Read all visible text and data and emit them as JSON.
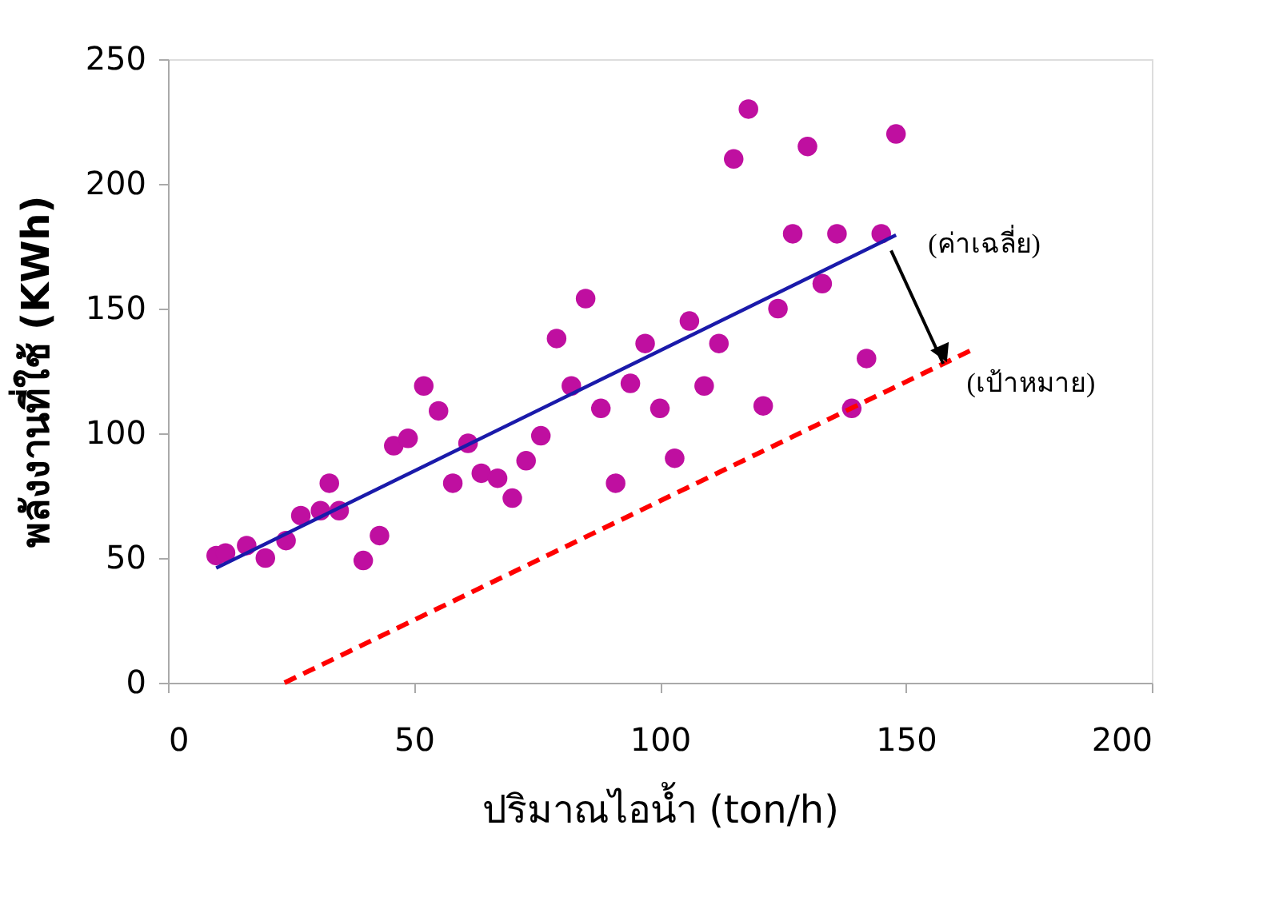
{
  "chart_data": {
    "type": "scatter",
    "xlabel": "ปริมาณไอน้ำ (ton/h)",
    "ylabel": "พลังงานที่ใช้ (KWh)",
    "xlim": [
      0,
      200
    ],
    "xticks": [
      0,
      50,
      100,
      150,
      200
    ],
    "ylim": [
      0,
      250
    ],
    "yticks": [
      0,
      50,
      100,
      150,
      200,
      250
    ],
    "grid": false,
    "series": [
      {
        "color": "#bf0fa0",
        "marker": "circle",
        "x": [
          9.8,
          11.7,
          16,
          19.8,
          24,
          27,
          31,
          32.8,
          34.8,
          39.7,
          43,
          45.9,
          48.8,
          52,
          55,
          57.9,
          61,
          63.7,
          67,
          70,
          72.8,
          75.8,
          79,
          82,
          84.9,
          88,
          91,
          94,
          97,
          100,
          103,
          106,
          109,
          112,
          115,
          118,
          121,
          124,
          127,
          130,
          133,
          136,
          139,
          142,
          145,
          148
        ],
        "values": [
          51,
          52,
          55,
          50,
          57,
          67,
          69,
          80,
          69,
          49,
          59,
          95,
          98,
          119,
          109,
          80,
          96,
          84,
          82,
          74,
          89,
          99,
          138,
          119,
          154,
          110,
          80,
          120,
          136,
          110,
          90,
          145,
          119,
          136,
          210,
          230,
          111,
          150,
          180,
          215,
          160,
          180,
          110,
          130,
          180,
          220
        ]
      },
      {
        "type": "line",
        "color": "#1a1aaa",
        "line_style": "solid",
        "x": [
          9.8,
          148
        ],
        "values": [
          46,
          179.5
        ]
      },
      {
        "type": "line",
        "color": "#ff0000",
        "line_style": "dashed",
        "x": [
          23.7,
          164
        ],
        "values": [
          0,
          134
        ]
      }
    ],
    "annotations": [
      "(ค่าเฉลี่ย)",
      "(เป้าหมาย)"
    ]
  }
}
